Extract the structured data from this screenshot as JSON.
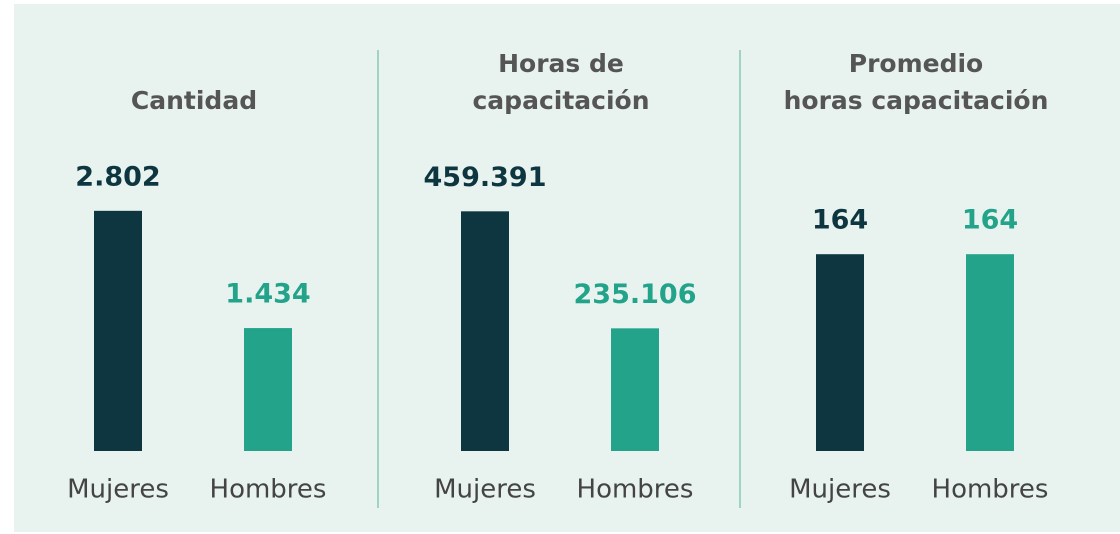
{
  "chart_data": [
    {
      "type": "bar",
      "title": [
        "Cantidad"
      ],
      "categories": [
        "Mujeres",
        "Hombres"
      ],
      "values": [
        2802,
        1434
      ],
      "value_labels": [
        "2.802",
        "1.434"
      ],
      "colors": [
        "#0e3640",
        "#22a38a"
      ],
      "ylim": [
        0,
        2800
      ]
    },
    {
      "type": "bar",
      "title": [
        "Horas de",
        "capacitación"
      ],
      "categories": [
        "Mujeres",
        "Hombres"
      ],
      "values": [
        459391,
        235106
      ],
      "value_labels": [
        "459.391",
        "235.106"
      ],
      "colors": [
        "#0e3640",
        "#22a38a"
      ],
      "ylim": [
        0,
        460000
      ]
    },
    {
      "type": "bar",
      "title": [
        "Promedio",
        "horas capacitación"
      ],
      "categories": [
        "Mujeres",
        "Hombres"
      ],
      "values": [
        164,
        164
      ],
      "colors": [
        "#0e3640",
        "#22a38a"
      ],
      "ylim": [
        0,
        200
      ]
    }
  ]
}
